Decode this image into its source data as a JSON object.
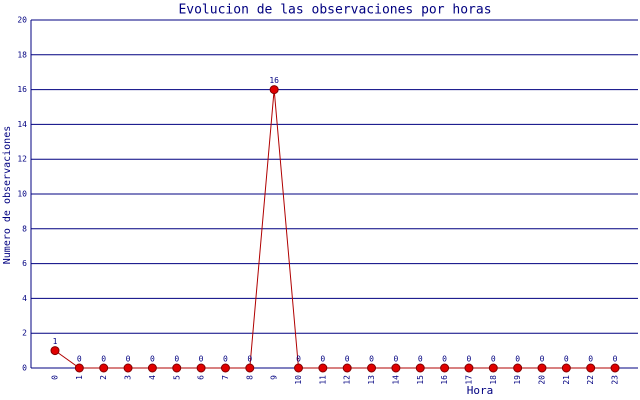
{
  "chart_data": {
    "type": "line",
    "title": "Evolucion de las observaciones por horas",
    "x_label": "Hora",
    "y_label": "Numero de observaciones",
    "categories": [
      "0",
      "1",
      "2",
      "3",
      "4",
      "5",
      "6",
      "7",
      "8",
      "9",
      "10",
      "11",
      "12",
      "13",
      "14",
      "15",
      "16",
      "17",
      "18",
      "19",
      "20",
      "21",
      "22",
      "23"
    ],
    "values": [
      1,
      0,
      0,
      0,
      0,
      0,
      0,
      0,
      0,
      16,
      0,
      0,
      0,
      0,
      0,
      0,
      0,
      0,
      0,
      0,
      0,
      0,
      0,
      0
    ],
    "color": "#b00000",
    "marker_color": "#e00000",
    "grid_color": "#000080",
    "ylim": [
      0,
      20
    ],
    "yticks": [
      0,
      2,
      4,
      6,
      8,
      10,
      12,
      14,
      16,
      18,
      20
    ],
    "grid": true
  }
}
